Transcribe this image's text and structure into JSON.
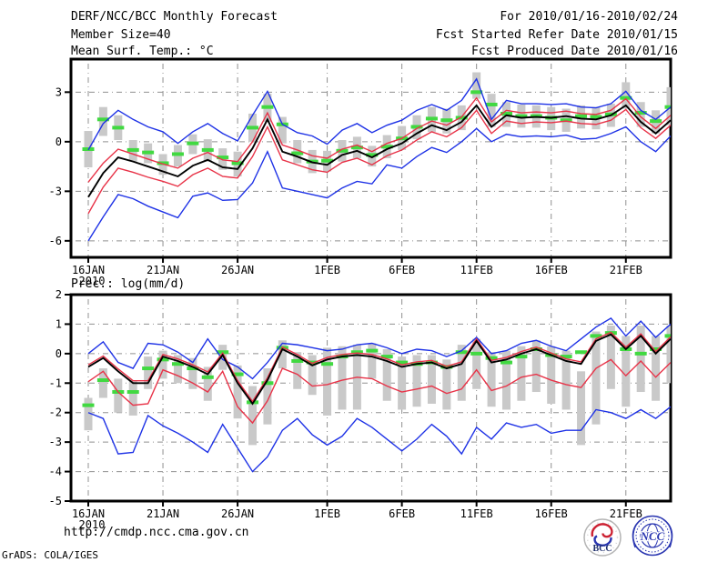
{
  "header": {
    "title": "DERF/NCC/BCC Monthly Forecast",
    "member_size": "Member Size=40",
    "panel1_label": "Mean Surf. Temp.: °C",
    "for_range": "For 2010/01/16-2010/02/24",
    "refer_date": "Fcst Started Refer Date 2010/01/15",
    "produced_date": "Fcst Produced Date 2010/01/16"
  },
  "panels": {
    "precip_label": "Prec.: log(mm/d)"
  },
  "footer": {
    "url": "http://cmdp.ncc.cma.gov.cn",
    "credit": "GrADS: COLA/IGES",
    "bcc_label": "BCC",
    "ncc_label": "NCC"
  },
  "colors": {
    "line_blue": "#1e32e6",
    "line_red": "#e83348",
    "line_black": "#000000",
    "obs_green": "#41d941",
    "spread_gray": "#c9c9c9",
    "grid": "#909090",
    "logo_blue": "#2a36b1",
    "logo_red": "#cc2233"
  },
  "chart_data": [
    {
      "type": "line",
      "title": "Mean Surf. Temp.: °C",
      "xlabel": "",
      "ylabel": "°C",
      "n_days": 40,
      "x_tick_labels": [
        "16JAN",
        "21JAN",
        "26JAN",
        "1FEB",
        "6FEB",
        "11FEB",
        "16FEB",
        "21FEB"
      ],
      "x_tick_days": [
        0,
        5,
        10,
        16,
        21,
        26,
        31,
        36
      ],
      "x_year_label": "2010",
      "ylim": [
        -7,
        5
      ],
      "y_tick_values": [
        3,
        0,
        -3,
        -6
      ],
      "y_grid_values": [
        3,
        0,
        -3,
        -6
      ],
      "series": [
        {
          "name": "ensemble-max",
          "color": "#1e32e6",
          "values": [
            -0.5,
            1.1,
            1.9,
            1.35,
            0.9,
            0.6,
            -0.1,
            0.6,
            1.1,
            0.5,
            0.05,
            1.6,
            3.05,
            1.05,
            0.55,
            0.35,
            -0.15,
            0.7,
            1.1,
            0.55,
            1.0,
            1.3,
            1.9,
            2.25,
            1.9,
            2.5,
            3.8,
            1.35,
            2.5,
            2.3,
            2.3,
            2.25,
            2.3,
            2.1,
            2.05,
            2.3,
            3.05,
            1.9,
            1.35,
            2.1
          ]
        },
        {
          "name": "ensemble-min",
          "color": "#1e32e6",
          "values": [
            -6.0,
            -4.55,
            -3.2,
            -3.45,
            -3.9,
            -4.25,
            -4.6,
            -3.3,
            -3.1,
            -3.55,
            -3.5,
            -2.5,
            -0.6,
            -2.8,
            -3.0,
            -3.2,
            -3.4,
            -2.8,
            -2.4,
            -2.55,
            -1.4,
            -1.6,
            -0.9,
            -0.35,
            -0.65,
            0.0,
            0.8,
            0.0,
            0.45,
            0.3,
            0.35,
            0.3,
            0.4,
            0.15,
            0.2,
            0.5,
            0.9,
            0.0,
            -0.6,
            0.35
          ]
        },
        {
          "name": "upper-band",
          "color": "#e83348",
          "values": [
            -2.45,
            -1.3,
            -0.45,
            -0.75,
            -1.05,
            -1.35,
            -1.6,
            -1.0,
            -0.65,
            -1.1,
            -1.2,
            0.0,
            1.75,
            -0.2,
            -0.5,
            -0.85,
            -1.0,
            -0.45,
            -0.2,
            -0.6,
            -0.1,
            0.2,
            0.8,
            1.25,
            1.0,
            1.5,
            2.65,
            1.2,
            1.9,
            1.75,
            1.8,
            1.75,
            1.85,
            1.7,
            1.65,
            1.9,
            2.6,
            1.5,
            0.8,
            1.6
          ]
        },
        {
          "name": "lower-band",
          "color": "#e83348",
          "values": [
            -4.35,
            -2.75,
            -1.6,
            -1.85,
            -2.15,
            -2.4,
            -2.7,
            -2.0,
            -1.6,
            -2.1,
            -2.2,
            -0.9,
            0.9,
            -1.1,
            -1.4,
            -1.7,
            -1.85,
            -1.25,
            -1.0,
            -1.4,
            -0.85,
            -0.5,
            0.1,
            0.6,
            0.3,
            0.85,
            1.9,
            0.5,
            1.25,
            1.1,
            1.2,
            1.15,
            1.25,
            1.1,
            1.05,
            1.3,
            1.95,
            0.85,
            0.2,
            1.0
          ]
        },
        {
          "name": "ensemble-mean",
          "color": "#000000",
          "values": [
            -3.35,
            -1.9,
            -0.95,
            -1.2,
            -1.5,
            -1.8,
            -2.1,
            -1.45,
            -1.1,
            -1.55,
            -1.65,
            -0.4,
            1.35,
            -0.6,
            -0.9,
            -1.25,
            -1.4,
            -0.8,
            -0.55,
            -0.95,
            -0.45,
            -0.1,
            0.5,
            1.0,
            0.7,
            1.2,
            2.2,
            0.9,
            1.6,
            1.45,
            1.5,
            1.45,
            1.55,
            1.4,
            1.35,
            1.6,
            2.2,
            1.2,
            0.5,
            1.3
          ]
        }
      ],
      "observation": {
        "name": "obs-segments",
        "color": "#41d941",
        "values": [
          -0.45,
          1.35,
          0.85,
          -0.5,
          -0.65,
          -1.3,
          -0.75,
          -0.1,
          -0.5,
          -0.95,
          -1.3,
          0.85,
          2.1,
          1.05,
          -0.7,
          -1.2,
          -1.15,
          -0.55,
          -0.35,
          -0.8,
          -0.3,
          0.2,
          0.9,
          1.4,
          1.3,
          1.45,
          3.0,
          2.25,
          1.7,
          1.55,
          1.55,
          1.45,
          1.3,
          1.55,
          1.5,
          1.65,
          2.65,
          1.75,
          1.25,
          2.1
        ]
      },
      "spread_bars": {
        "name": "member-spread",
        "color": "#c9c9c9",
        "low": [
          -1.55,
          0.35,
          0.1,
          -1.2,
          -1.3,
          -2.0,
          -1.5,
          -0.75,
          -1.2,
          -1.7,
          -2.1,
          0.0,
          1.2,
          -0.1,
          -1.3,
          -1.9,
          -1.8,
          -1.2,
          -1.0,
          -1.5,
          -1.0,
          -0.5,
          0.15,
          0.6,
          0.5,
          0.7,
          2.6,
          0.9,
          0.9,
          0.85,
          0.85,
          0.7,
          0.6,
          0.8,
          0.75,
          0.9,
          2.0,
          0.9,
          0.5,
          1.0
        ],
        "high": [
          0.65,
          2.1,
          1.6,
          0.1,
          -0.1,
          -0.75,
          -0.2,
          0.45,
          0.15,
          -0.4,
          -0.6,
          1.7,
          2.9,
          1.5,
          0.1,
          -0.5,
          -0.55,
          0.1,
          0.3,
          -0.25,
          0.4,
          0.95,
          1.6,
          2.1,
          2.0,
          2.2,
          4.2,
          2.9,
          2.4,
          2.25,
          2.2,
          2.1,
          2.0,
          2.2,
          2.1,
          2.3,
          3.6,
          2.4,
          1.9,
          3.3
        ]
      }
    },
    {
      "type": "line",
      "title": "Prec.: log(mm/d)",
      "xlabel": "",
      "ylabel": "log(mm/d)",
      "n_days": 40,
      "x_tick_labels": [
        "16JAN",
        "21JAN",
        "26JAN",
        "1FEB",
        "6FEB",
        "11FEB",
        "16FEB",
        "21FEB"
      ],
      "x_tick_days": [
        0,
        5,
        10,
        16,
        21,
        26,
        31,
        36
      ],
      "x_year_label": "2010",
      "ylim": [
        -5,
        2
      ],
      "y_tick_values": [
        2,
        1,
        0,
        -1,
        -2,
        -3,
        -4,
        -5
      ],
      "y_grid_values": [
        1,
        0,
        -1,
        -2,
        -3,
        -4
      ],
      "series": [
        {
          "name": "ensemble-max",
          "color": "#1e32e6",
          "values": [
            0.0,
            0.4,
            -0.3,
            -0.5,
            0.35,
            0.3,
            0.05,
            -0.3,
            0.5,
            -0.2,
            -0.45,
            -0.85,
            -0.3,
            0.35,
            0.3,
            0.2,
            0.1,
            0.15,
            0.3,
            0.35,
            0.2,
            0.0,
            0.15,
            0.1,
            -0.1,
            0.1,
            0.55,
            0.0,
            0.1,
            0.35,
            0.45,
            0.25,
            0.1,
            0.5,
            0.9,
            1.2,
            0.6,
            1.1,
            0.55,
            1.0
          ]
        },
        {
          "name": "ensemble-min",
          "color": "#1e32e6",
          "values": [
            -2.0,
            -2.2,
            -3.4,
            -3.35,
            -2.1,
            -2.45,
            -2.7,
            -3.0,
            -3.35,
            -2.4,
            -3.2,
            -4.0,
            -3.5,
            -2.6,
            -2.2,
            -2.75,
            -3.1,
            -2.8,
            -2.2,
            -2.5,
            -2.9,
            -3.3,
            -2.9,
            -2.4,
            -2.8,
            -3.4,
            -2.5,
            -2.9,
            -2.35,
            -2.5,
            -2.4,
            -2.7,
            -2.6,
            -2.6,
            -1.9,
            -2.0,
            -2.2,
            -1.9,
            -2.2,
            -1.8
          ]
        },
        {
          "name": "upper-band",
          "color": "#e83348",
          "values": [
            -0.38,
            -0.08,
            -0.52,
            -0.92,
            -0.92,
            -0.03,
            -0.18,
            -0.38,
            -0.62,
            0.02,
            -0.92,
            -1.62,
            -0.82,
            0.22,
            -0.03,
            -0.33,
            -0.13,
            -0.03,
            0.02,
            -0.03,
            -0.18,
            -0.38,
            -0.28,
            -0.23,
            -0.43,
            -0.28,
            0.5,
            -0.23,
            -0.13,
            0.07,
            0.22,
            0.02,
            -0.18,
            -0.28,
            0.5,
            0.72,
            0.22,
            0.67,
            0.07,
            0.57
          ]
        },
        {
          "name": "lower-band",
          "color": "#e83348",
          "values": [
            -0.95,
            -0.6,
            -1.3,
            -1.75,
            -1.7,
            -0.55,
            -0.75,
            -1.0,
            -1.3,
            -0.6,
            -1.8,
            -2.35,
            -1.6,
            -0.5,
            -0.7,
            -1.1,
            -1.05,
            -0.9,
            -0.8,
            -0.85,
            -1.1,
            -1.3,
            -1.2,
            -1.1,
            -1.35,
            -1.2,
            -0.55,
            -1.25,
            -1.1,
            -0.8,
            -0.7,
            -0.9,
            -1.05,
            -1.15,
            -0.5,
            -0.2,
            -0.75,
            -0.25,
            -0.8,
            -0.3
          ]
        },
        {
          "name": "ensemble-mean",
          "color": "#000000",
          "values": [
            -0.45,
            -0.15,
            -0.6,
            -1.0,
            -1.0,
            -0.1,
            -0.25,
            -0.45,
            -0.7,
            -0.05,
            -1.0,
            -1.7,
            -0.9,
            0.15,
            -0.1,
            -0.4,
            -0.2,
            -0.1,
            -0.05,
            -0.1,
            -0.25,
            -0.45,
            -0.35,
            -0.3,
            -0.5,
            -0.35,
            0.43,
            -0.3,
            -0.2,
            0.0,
            0.15,
            -0.05,
            -0.25,
            -0.35,
            0.43,
            0.65,
            0.15,
            0.6,
            0.0,
            0.5
          ]
        }
      ],
      "observation": {
        "name": "obs-segments",
        "color": "#41d941",
        "values": [
          -1.75,
          -0.9,
          -1.3,
          -1.3,
          -0.5,
          -0.2,
          -0.35,
          -0.5,
          -0.8,
          0.05,
          -0.7,
          -1.65,
          -1.0,
          0.2,
          -0.25,
          -0.3,
          -0.35,
          -0.1,
          0.05,
          0.1,
          -0.1,
          -0.3,
          -0.35,
          -0.3,
          -0.45,
          0.05,
          0.0,
          -0.15,
          -0.3,
          -0.1,
          0.15,
          -0.05,
          -0.1,
          0.05,
          0.6,
          0.7,
          0.15,
          0.0,
          0.15,
          0.6
        ]
      },
      "spread_bars": {
        "name": "member-spread",
        "color": "#c9c9c9",
        "low": [
          -2.6,
          -1.5,
          -2.0,
          -2.1,
          -1.2,
          -0.85,
          -1.0,
          -1.2,
          -1.6,
          -0.55,
          -2.2,
          -3.1,
          -2.4,
          -0.5,
          -1.2,
          -1.4,
          -2.1,
          -1.9,
          -1.9,
          -0.85,
          -1.6,
          -1.9,
          -1.8,
          -1.7,
          -1.9,
          -1.6,
          -1.2,
          -1.8,
          -1.9,
          -1.6,
          -1.3,
          -1.7,
          -1.9,
          -3.1,
          -2.4,
          -1.2,
          -1.8,
          -1.3,
          -1.6,
          -1.0
        ],
        "high": [
          -1.5,
          -0.5,
          -0.85,
          -0.9,
          -0.1,
          0.1,
          -0.05,
          -0.15,
          -0.45,
          0.3,
          -0.4,
          -1.1,
          -0.5,
          0.45,
          0.05,
          -0.05,
          0.2,
          0.25,
          0.3,
          0.35,
          0.15,
          -0.1,
          -0.05,
          -0.05,
          -0.2,
          0.3,
          0.5,
          0.05,
          0.1,
          0.25,
          0.45,
          0.25,
          0.1,
          -0.6,
          0.75,
          0.95,
          0.6,
          0.95,
          0.6,
          0.95
        ]
      }
    }
  ]
}
